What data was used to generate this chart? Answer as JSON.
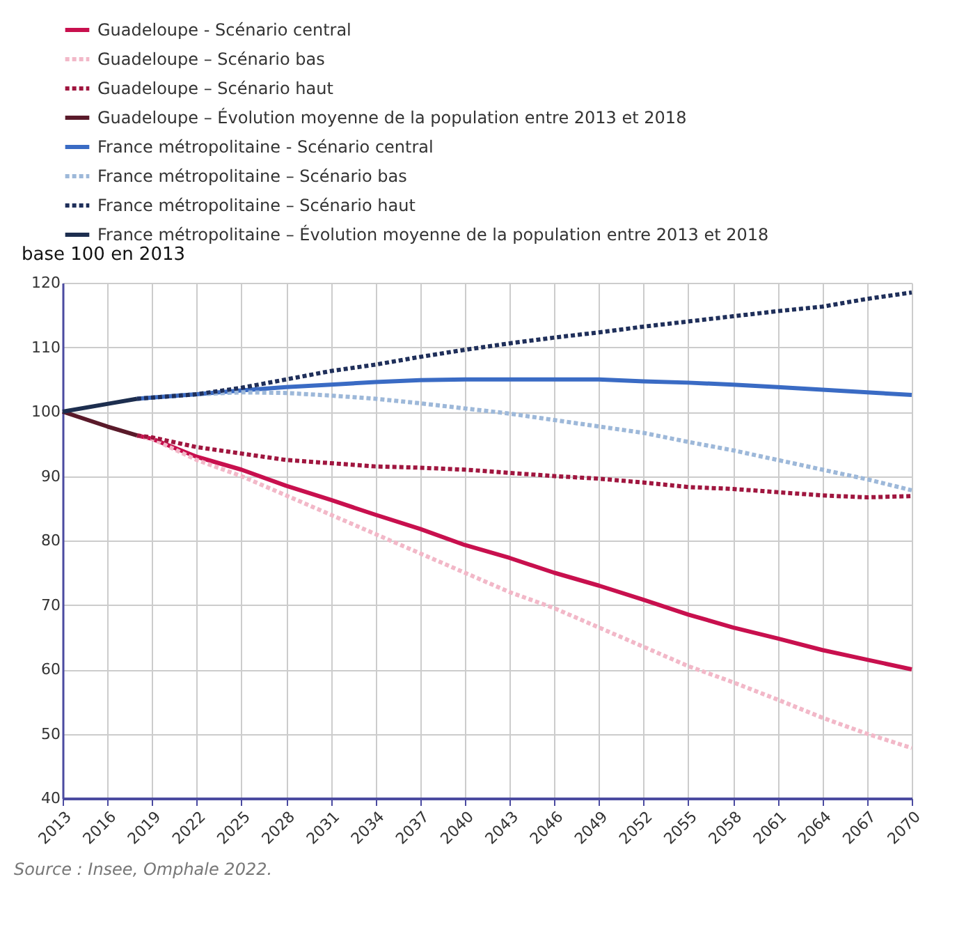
{
  "chart_data": {
    "type": "line",
    "ylabel": "base 100 en 2013",
    "annotations": [
      "Source : Insee, Omphale 2022."
    ],
    "xlim": [
      2013,
      2070
    ],
    "xticks": [
      2013,
      2016,
      2019,
      2022,
      2025,
      2028,
      2031,
      2034,
      2037,
      2040,
      2043,
      2046,
      2049,
      2052,
      2055,
      2058,
      2061,
      2064,
      2067,
      2070
    ],
    "ylim": [
      40,
      120
    ],
    "yticks": [
      40,
      50,
      60,
      70,
      80,
      90,
      100,
      110,
      120
    ],
    "grid": true,
    "legend": "top left",
    "marker": "none",
    "series": [
      {
        "name": "Guadeloupe - Scénario central",
        "color": "#c8104e",
        "line_style": "solid",
        "x": [
          2018,
          2019,
          2022,
          2025,
          2028,
          2031,
          2034,
          2037,
          2040,
          2043,
          2046,
          2049,
          2052,
          2055,
          2058,
          2061,
          2064,
          2067,
          2070
        ],
        "values": [
          96.3,
          95.8,
          93,
          91,
          88.5,
          86.3,
          84,
          81.8,
          79.3,
          77.3,
          75,
          73,
          70.8,
          68.5,
          66.5,
          64.8,
          63,
          61.5,
          60
        ]
      },
      {
        "name": "Guadeloupe – Scénario bas",
        "color": "#f2b8c8",
        "line_style": "dotted",
        "x": [
          2018,
          2019,
          2022,
          2025,
          2028,
          2031,
          2034,
          2037,
          2040,
          2043,
          2046,
          2049,
          2052,
          2055,
          2058,
          2061,
          2064,
          2067,
          2070
        ],
        "values": [
          96.3,
          95.8,
          92.5,
          90,
          87,
          84,
          81,
          78,
          75,
          72,
          69.5,
          66.5,
          63.5,
          60.5,
          58,
          55.3,
          52.5,
          50,
          47.8
        ]
      },
      {
        "name": "Guadeloupe – Scénario haut",
        "color": "#a0163f",
        "line_style": "dotted",
        "x": [
          2018,
          2019,
          2022,
          2025,
          2028,
          2031,
          2034,
          2037,
          2040,
          2043,
          2046,
          2049,
          2052,
          2055,
          2058,
          2061,
          2064,
          2067,
          2070
        ],
        "values": [
          96.3,
          96,
          94.5,
          93.5,
          92.5,
          92,
          91.5,
          91.3,
          91,
          90.5,
          90,
          89.6,
          89,
          88.3,
          88,
          87.5,
          87,
          86.7,
          86.9
        ]
      },
      {
        "name": "Guadeloupe – Évolution moyenne de la population entre 2013 et 2018",
        "color": "#5a1a2a",
        "line_style": "solid",
        "x": [
          2013,
          2016,
          2018
        ],
        "values": [
          100,
          97.7,
          96.3
        ]
      },
      {
        "name": "France métropolitaine - Scénario central",
        "color": "#3a6bc4",
        "line_style": "solid",
        "x": [
          2018,
          2019,
          2022,
          2025,
          2028,
          2031,
          2034,
          2037,
          2040,
          2043,
          2046,
          2049,
          2052,
          2055,
          2058,
          2061,
          2064,
          2067,
          2070
        ],
        "values": [
          102,
          102.2,
          102.7,
          103.3,
          103.8,
          104.2,
          104.6,
          104.9,
          105,
          105,
          105,
          105,
          104.7,
          104.5,
          104.2,
          103.8,
          103.4,
          103,
          102.6
        ]
      },
      {
        "name": "France métropolitaine – Scénario bas",
        "color": "#9db8d9",
        "line_style": "dotted",
        "x": [
          2018,
          2022,
          2025,
          2028,
          2031,
          2034,
          2037,
          2040,
          2043,
          2046,
          2049,
          2052,
          2055,
          2058,
          2061,
          2064,
          2067,
          2070
        ],
        "values": [
          102,
          102.7,
          103,
          102.9,
          102.5,
          102,
          101.3,
          100.5,
          99.7,
          98.7,
          97.7,
          96.7,
          95.3,
          94,
          92.5,
          91,
          89.5,
          87.8
        ]
      },
      {
        "name": "France métropolitaine – Scénario haut",
        "color": "#1f2f5a",
        "line_style": "dotted",
        "x": [
          2018,
          2022,
          2025,
          2028,
          2031,
          2034,
          2037,
          2040,
          2043,
          2046,
          2049,
          2052,
          2055,
          2058,
          2061,
          2064,
          2067,
          2070
        ],
        "values": [
          102,
          102.7,
          103.7,
          105,
          106.3,
          107.3,
          108.5,
          109.6,
          110.6,
          111.5,
          112.3,
          113.2,
          114,
          114.8,
          115.6,
          116.3,
          117.5,
          118.5
        ]
      },
      {
        "name": "France métropolitaine – Évolution moyenne de la population entre 2013 et 2018",
        "color": "#1d2e4f",
        "line_style": "solid",
        "x": [
          2013,
          2016,
          2018
        ],
        "values": [
          100,
          101.2,
          102
        ]
      }
    ]
  }
}
